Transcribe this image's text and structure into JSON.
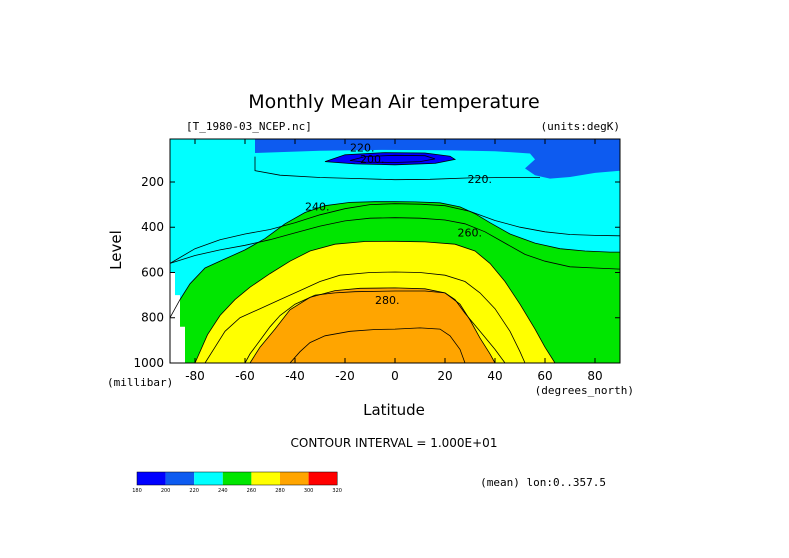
{
  "chart_data": {
    "type": "heatmap",
    "title": "Monthly Mean Air temperature",
    "subtitle_left": "[T_1980-03_NCEP.nc]",
    "subtitle_right": "(units:degK)",
    "xlabel": "Latitude",
    "xunits": "(degrees_north)",
    "ylabel": "Level",
    "yunits": "(millibar)",
    "contour_interval_text": "CONTOUR INTERVAL = 1.000E+01",
    "mean_note": "(mean) lon:0..357.5",
    "xlim": [
      -90,
      90
    ],
    "ylim": [
      1000,
      10
    ],
    "x_ticks": [
      -80,
      -60,
      -40,
      -20,
      0,
      20,
      40,
      60,
      80
    ],
    "x_tick_labels": [
      "-80",
      "-60",
      "-40",
      "-20",
      "0",
      "20",
      "40",
      "60",
      "80"
    ],
    "y_ticks": [
      200,
      400,
      600,
      800,
      1000
    ],
    "y_tick_labels": [
      "200",
      "400",
      "600",
      "800",
      "1000"
    ],
    "contour_labels": [
      {
        "text": "220.",
        "lat": -18,
        "level": 65
      },
      {
        "text": "200.",
        "lat": -14,
        "level": 115
      },
      {
        "text": "220.",
        "lat": 29,
        "level": 205
      },
      {
        "text": "240.",
        "lat": -36,
        "level": 325
      },
      {
        "text": "260.",
        "lat": 25,
        "level": 440
      },
      {
        "text": "280.",
        "lat": -8,
        "level": 740
      }
    ],
    "colorbar": {
      "levels": [
        "180",
        "200",
        "220",
        "240",
        "260",
        "280",
        "300",
        "320"
      ],
      "colors": [
        "#0000ff",
        "#0d5bf0",
        "#00ffff",
        "#00e600",
        "#ffff00",
        "#ffa500",
        "#ff0000"
      ]
    },
    "fill_colors": {
      "b200_220": "#0d5bf0",
      "b180_200": "#0000ff",
      "b220_240": "#00ffff",
      "b240_260": "#00e600",
      "b260_280": "#ffff00",
      "b280_300": "#ffa500"
    },
    "bands": {
      "t240": [
        [
          -90,
          800
        ],
        [
          -86,
          720
        ],
        [
          -82,
          650
        ],
        [
          -76,
          580
        ],
        [
          -68,
          540
        ],
        [
          -60,
          500
        ],
        [
          -52,
          450
        ],
        [
          -44,
          385
        ],
        [
          -36,
          335
        ],
        [
          -28,
          305
        ],
        [
          -18,
          290
        ],
        [
          -8,
          287
        ],
        [
          0,
          287
        ],
        [
          8,
          288
        ],
        [
          18,
          292
        ],
        [
          26,
          310
        ],
        [
          32,
          340
        ],
        [
          38,
          380
        ],
        [
          46,
          430
        ],
        [
          56,
          470
        ],
        [
          66,
          495
        ],
        [
          76,
          505
        ],
        [
          86,
          510
        ],
        [
          90,
          510
        ]
      ],
      "t260": [
        [
          -80,
          1000
        ],
        [
          -75,
          875
        ],
        [
          -70,
          790
        ],
        [
          -64,
          720
        ],
        [
          -58,
          665
        ],
        [
          -50,
          605
        ],
        [
          -42,
          550
        ],
        [
          -34,
          505
        ],
        [
          -24,
          475
        ],
        [
          -12,
          463
        ],
        [
          0,
          462
        ],
        [
          12,
          465
        ],
        [
          24,
          475
        ],
        [
          32,
          505
        ],
        [
          38,
          560
        ],
        [
          44,
          640
        ],
        [
          50,
          740
        ],
        [
          56,
          850
        ],
        [
          60,
          930
        ],
        [
          64,
          1000
        ]
      ],
      "t280": [
        [
          -58,
          1000
        ],
        [
          -54,
          930
        ],
        [
          -48,
          850
        ],
        [
          -42,
          765
        ],
        [
          -34,
          710
        ],
        [
          -24,
          680
        ],
        [
          -14,
          670
        ],
        [
          0,
          668
        ],
        [
          12,
          672
        ],
        [
          20,
          690
        ],
        [
          26,
          740
        ],
        [
          30,
          810
        ],
        [
          34,
          890
        ],
        [
          38,
          960
        ],
        [
          40,
          1000
        ]
      ],
      "t220_upper": [
        [
          -56,
          72
        ],
        [
          -30,
          62
        ],
        [
          -5,
          58
        ],
        [
          20,
          60
        ],
        [
          40,
          64
        ],
        [
          54,
          74
        ],
        [
          56,
          100
        ],
        [
          52,
          140
        ],
        [
          56,
          170
        ],
        [
          62,
          185
        ],
        [
          70,
          178
        ],
        [
          80,
          160
        ],
        [
          90,
          150
        ],
        [
          90,
          10
        ],
        [
          -56,
          10
        ]
      ],
      "t200": [
        [
          -28,
          110
        ],
        [
          -20,
          80
        ],
        [
          -4,
          70
        ],
        [
          12,
          72
        ],
        [
          22,
          86
        ],
        [
          24,
          100
        ],
        [
          16,
          118
        ],
        [
          0,
          124
        ],
        [
          -16,
          120
        ]
      ],
      "t190": [
        [
          -18,
          105
        ],
        [
          -12,
          88
        ],
        [
          0,
          82
        ],
        [
          12,
          84
        ],
        [
          16,
          98
        ],
        [
          10,
          110
        ],
        [
          0,
          114
        ],
        [
          -12,
          112
        ]
      ],
      "line_upper_220": [
        [
          -56,
          88
        ],
        [
          -56,
          150
        ],
        [
          -46,
          170
        ],
        [
          -30,
          180
        ],
        [
          -14,
          185
        ],
        [
          0,
          190
        ],
        [
          14,
          188
        ],
        [
          30,
          182
        ],
        [
          45,
          180
        ],
        [
          58,
          180
        ]
      ],
      "line_a": [
        [
          -90,
          560
        ],
        [
          -80,
          495
        ],
        [
          -70,
          455
        ],
        [
          -60,
          430
        ],
        [
          -50,
          410
        ],
        [
          -40,
          380
        ],
        [
          -30,
          345
        ],
        [
          -20,
          318
        ],
        [
          -10,
          300
        ],
        [
          0,
          296
        ],
        [
          10,
          298
        ],
        [
          20,
          305
        ],
        [
          30,
          330
        ],
        [
          40,
          370
        ],
        [
          50,
          400
        ],
        [
          60,
          420
        ],
        [
          70,
          432
        ],
        [
          80,
          436
        ],
        [
          90,
          438
        ]
      ],
      "line_b": [
        [
          -90,
          560
        ],
        [
          -80,
          525
        ],
        [
          -70,
          500
        ],
        [
          -60,
          480
        ],
        [
          -50,
          455
        ],
        [
          -40,
          425
        ],
        [
          -30,
          395
        ],
        [
          -20,
          372
        ],
        [
          -10,
          360
        ],
        [
          0,
          358
        ],
        [
          10,
          360
        ],
        [
          20,
          368
        ],
        [
          28,
          385
        ],
        [
          36,
          420
        ],
        [
          44,
          470
        ],
        [
          52,
          520
        ],
        [
          60,
          550
        ],
        [
          70,
          575
        ],
        [
          80,
          580
        ],
        [
          90,
          585
        ]
      ],
      "line_c": [
        [
          -60,
          1000
        ],
        [
          -58,
          960
        ],
        [
          -54,
          900
        ],
        [
          -50,
          840
        ],
        [
          -46,
          790
        ],
        [
          -40,
          740
        ],
        [
          -32,
          700
        ],
        [
          -24,
          690
        ],
        [
          -16,
          685
        ],
        [
          0,
          682
        ],
        [
          12,
          682
        ],
        [
          20,
          690
        ],
        [
          24,
          720
        ],
        [
          28,
          780
        ],
        [
          34,
          860
        ],
        [
          40,
          940
        ],
        [
          44,
          1000
        ]
      ],
      "line_d": [
        [
          -42,
          1000
        ],
        [
          -38,
          950
        ],
        [
          -34,
          910
        ],
        [
          -28,
          880
        ],
        [
          -18,
          860
        ],
        [
          -8,
          852
        ],
        [
          0,
          850
        ],
        [
          10,
          845
        ],
        [
          18,
          850
        ],
        [
          22,
          880
        ],
        [
          26,
          940
        ],
        [
          28,
          1000
        ]
      ],
      "line_e": [
        [
          -76,
          1000
        ],
        [
          -72,
          930
        ],
        [
          -68,
          860
        ],
        [
          -62,
          800
        ],
        [
          -54,
          760
        ],
        [
          -46,
          720
        ],
        [
          -38,
          680
        ],
        [
          -30,
          640
        ],
        [
          -22,
          612
        ],
        [
          -10,
          600
        ],
        [
          0,
          598
        ],
        [
          10,
          600
        ],
        [
          20,
          612
        ],
        [
          28,
          640
        ],
        [
          34,
          690
        ],
        [
          40,
          760
        ],
        [
          46,
          860
        ],
        [
          50,
          950
        ],
        [
          52,
          1000
        ]
      ]
    }
  }
}
